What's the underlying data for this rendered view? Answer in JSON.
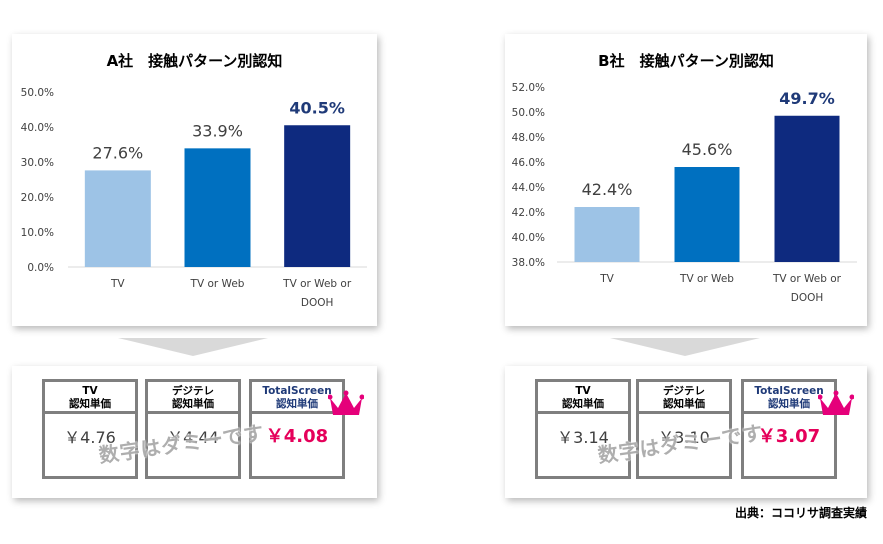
{
  "chart_data": [
    {
      "type": "bar",
      "title": "A社　接触パターン別認知",
      "categories": [
        "TV",
        "TV or Web",
        "TV or Web or DOOH"
      ],
      "category_lines": [
        [
          "TV"
        ],
        [
          "TV or Web"
        ],
        [
          "TV or Web or",
          "DOOH"
        ]
      ],
      "values": [
        27.6,
        33.9,
        40.5
      ],
      "value_labels": [
        "27.6%",
        "33.9%",
        "40.5%"
      ],
      "ylim": [
        0,
        50
      ],
      "yticks": [
        0,
        10,
        20,
        30,
        40,
        50
      ],
      "ytick_labels": [
        "0.0%",
        "10.0%",
        "20.0%",
        "30.0%",
        "40.0%",
        "50.0%"
      ],
      "colors": [
        "#9dc3e6",
        "#0070c0",
        "#0e2a7f"
      ],
      "grid": false
    },
    {
      "type": "bar",
      "title": "B社　接触パターン別認知",
      "categories": [
        "TV",
        "TV or Web",
        "TV or Web or DOOH"
      ],
      "category_lines": [
        [
          "TV"
        ],
        [
          "TV or Web"
        ],
        [
          "TV or Web or",
          "DOOH"
        ]
      ],
      "values": [
        42.4,
        45.6,
        49.7
      ],
      "value_labels": [
        "42.4%",
        "45.6%",
        "49.7%"
      ],
      "ylim": [
        38,
        52
      ],
      "yticks": [
        38,
        40,
        42,
        44,
        46,
        48,
        50,
        52
      ],
      "ytick_labels": [
        "38.0%",
        "40.0%",
        "42.0%",
        "44.0%",
        "46.0%",
        "48.0%",
        "50.0%",
        "52.0%"
      ],
      "colors": [
        "#9dc3e6",
        "#0070c0",
        "#0e2a7f"
      ],
      "grid": false
    }
  ],
  "cost_boxes": {
    "A": {
      "tv": {
        "title1": "TV",
        "title2": "認知単価",
        "value": "￥4.76"
      },
      "digi": {
        "title1": "デジテレ",
        "title2": "認知単価",
        "value": "￥4.44"
      },
      "ts": {
        "title1": "TotalScreen",
        "title2": "認知単価",
        "value": "￥4.08"
      }
    },
    "B": {
      "tv": {
        "title1": "TV",
        "title2": "認知単価",
        "value": "￥3.14"
      },
      "digi": {
        "title1": "デジテレ",
        "title2": "認知単価",
        "value": "￥3.10"
      },
      "ts": {
        "title1": "TotalScreen",
        "title2": "認知単価",
        "value": "￥3.07"
      }
    }
  },
  "watermark": "数字はダミーです",
  "source": "出典：ココリサ調査実績",
  "colors": {
    "accent_pink": "#e5005a",
    "navy": "#1f3a78",
    "crown": "#e5007a"
  }
}
